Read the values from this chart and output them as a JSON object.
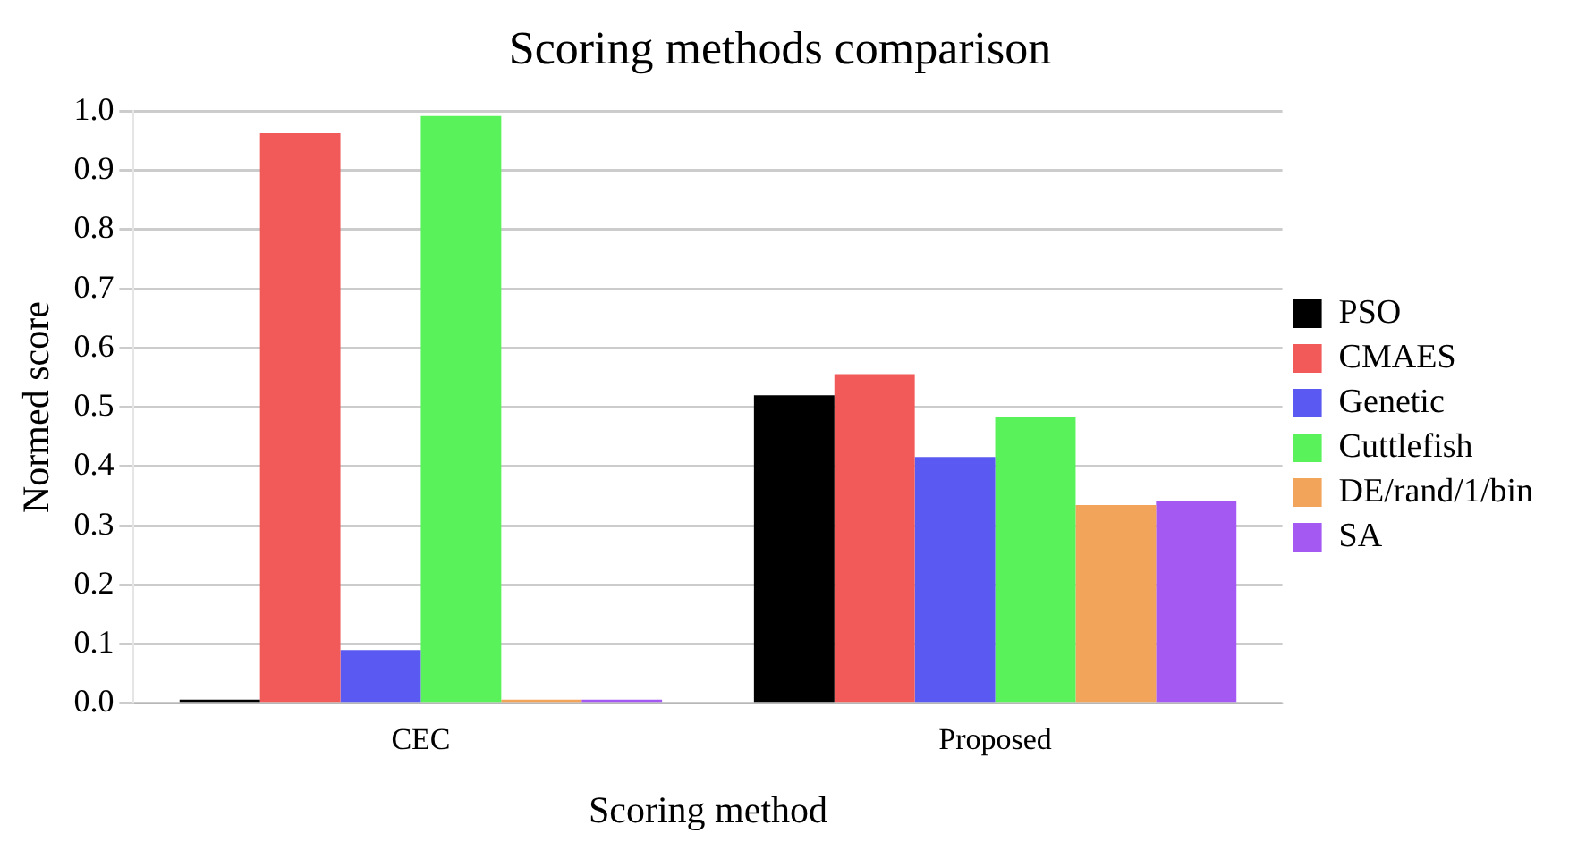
{
  "chart_data": {
    "type": "bar",
    "title": "Scoring methods comparison",
    "xlabel": "Scoring method",
    "ylabel": "Normed score",
    "categories": [
      "CEC",
      "Proposed"
    ],
    "series": [
      {
        "name": "PSO",
        "color": "#000000",
        "values": [
          0.003,
          0.52
        ]
      },
      {
        "name": "CMAES",
        "color": "#f25a5a",
        "values": [
          0.963,
          0.556
        ]
      },
      {
        "name": "Genetic",
        "color": "#5a5af2",
        "values": [
          0.09,
          0.416
        ]
      },
      {
        "name": "Cuttlefish",
        "color": "#5af25a",
        "values": [
          0.992,
          0.484
        ]
      },
      {
        "name": "DE/rand/1/bin",
        "color": "#f2a45a",
        "values": [
          0.003,
          0.335
        ]
      },
      {
        "name": "SA",
        "color": "#a45af2",
        "values": [
          0.003,
          0.341
        ]
      }
    ],
    "ylim": [
      0,
      1
    ],
    "yticks": [
      {
        "value": 0,
        "label": "0.0"
      },
      0.1,
      0.2,
      0.3,
      0.4,
      0.5,
      0.6,
      0.7,
      0.8,
      0.9,
      {
        "value": 1,
        "label": "1.0"
      }
    ],
    "grid": "y",
    "legend": "right"
  }
}
